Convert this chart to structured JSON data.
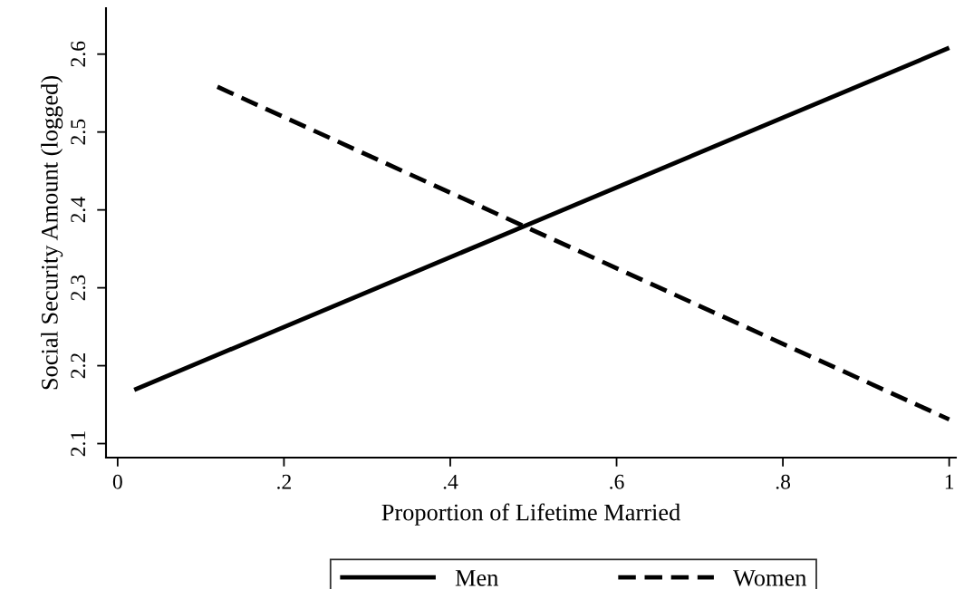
{
  "chart_data": {
    "type": "line",
    "xlabel": "Proportion of Lifetime Married",
    "ylabel": "Social Security Amount (logged)",
    "xlim": [
      -0.014,
      1.008
    ],
    "ylim": [
      2.082,
      2.659
    ],
    "xticks": [
      0,
      {
        "value": 0.2,
        "label": ".2"
      },
      {
        "value": 0.4,
        "label": ".4"
      },
      {
        "value": 0.6,
        "label": ".6"
      },
      {
        "value": 0.8,
        "label": ".8"
      },
      1
    ],
    "yticks": [
      2.1,
      2.2,
      2.3,
      2.4,
      2.5,
      2.6
    ],
    "grid": false,
    "legend": "bottom",
    "series": [
      {
        "name": "Men",
        "color": "#000000",
        "x": [
          0.02,
          1
        ],
        "values": [
          2.169,
          2.608
        ],
        "line_style": "solid"
      },
      {
        "name": "Women",
        "color": "#000000",
        "x": [
          0.12,
          1
        ],
        "values": [
          2.558,
          2.131
        ],
        "line_style": "dashed"
      }
    ]
  }
}
